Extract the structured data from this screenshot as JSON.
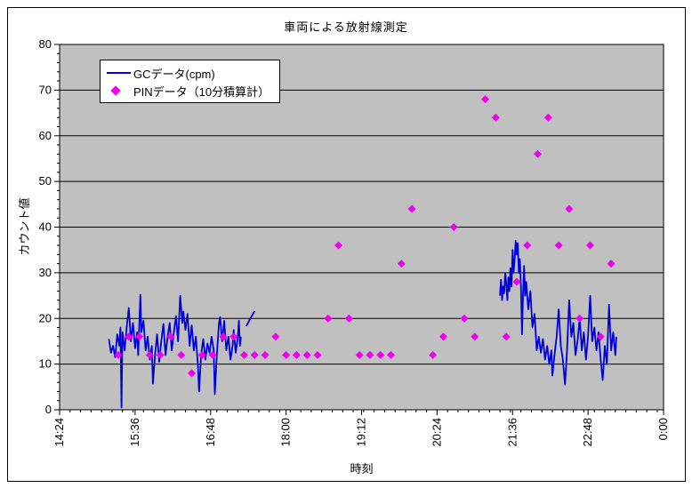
{
  "chart_data": {
    "type": "line+scatter",
    "title": "車両による放射線測定",
    "xlabel": "時刻",
    "ylabel": "カウント値",
    "x_ticks": [
      "14:24",
      "15:36",
      "16:48",
      "18:00",
      "19:12",
      "20:24",
      "21:36",
      "22:48",
      "0:00"
    ],
    "y_ticks": [
      0,
      10,
      20,
      30,
      40,
      50,
      60,
      70,
      80
    ],
    "ylim": [
      0,
      80
    ],
    "x_minor_unit_minutes": 10,
    "y_minor_unit": 2,
    "grid": "horizontal-major",
    "legend_position": "inside-top-left",
    "plot_bg_color": "#C0C0C0",
    "axis_color": "#000000",
    "series": [
      {
        "name": "GCデータ(cpm)",
        "type": "line",
        "color": "#0000D8",
        "segments": [
          [
            [
              "15:11",
              15.5
            ],
            [
              "15:13",
              12.5
            ],
            [
              "15:15",
              14
            ],
            [
              "15:17",
              11.5
            ],
            [
              "15:19",
              16.5
            ],
            [
              "15:21",
              14
            ],
            [
              "15:22",
              18
            ],
            [
              "15:23",
              0.5
            ],
            [
              "15:24",
              17
            ],
            [
              "15:26",
              13
            ],
            [
              "15:28",
              18
            ],
            [
              "15:30",
              22.3
            ],
            [
              "15:32",
              15
            ],
            [
              "15:34",
              19
            ],
            [
              "15:36",
              13.5
            ],
            [
              "15:38",
              17
            ],
            [
              "15:39",
              12
            ],
            [
              "15:41",
              25.2
            ],
            [
              "15:42",
              17
            ],
            [
              "15:44",
              19.5
            ],
            [
              "15:46",
              13
            ],
            [
              "15:48",
              16
            ],
            [
              "15:50",
              11
            ],
            [
              "15:52",
              14
            ],
            [
              "15:53",
              5.7
            ],
            [
              "15:55",
              12
            ],
            [
              "15:57",
              16.5
            ],
            [
              "15:59",
              10.5
            ],
            [
              "16:01",
              15
            ],
            [
              "16:03",
              18.8
            ],
            [
              "16:05",
              12
            ],
            [
              "16:07",
              16
            ],
            [
              "16:09",
              19
            ],
            [
              "16:11",
              13
            ],
            [
              "16:13",
              17
            ],
            [
              "16:15",
              20.5
            ],
            [
              "16:17",
              15
            ],
            [
              "16:19",
              25
            ],
            [
              "16:21",
              19
            ],
            [
              "16:22",
              21.5
            ],
            [
              "16:24",
              17.5
            ],
            [
              "16:26",
              21
            ],
            [
              "16:28",
              14
            ],
            [
              "16:30",
              18.5
            ],
            [
              "16:32",
              13
            ],
            [
              "16:34",
              16
            ],
            [
              "16:36",
              9.5
            ],
            [
              "16:37",
              4
            ],
            [
              "16:39",
              12
            ],
            [
              "16:41",
              15.5
            ],
            [
              "16:43",
              11
            ],
            [
              "16:45",
              14.5
            ],
            [
              "16:47",
              12.5
            ],
            [
              "16:49",
              16
            ],
            [
              "16:51",
              13
            ],
            [
              "16:52",
              3.4
            ],
            [
              "16:54",
              12
            ],
            [
              "16:56",
              19
            ],
            [
              "16:57",
              20.3
            ],
            [
              "16:59",
              15
            ],
            [
              "17:01",
              19.5
            ],
            [
              "17:03",
              13
            ],
            [
              "17:05",
              16
            ],
            [
              "17:07",
              11
            ],
            [
              "17:09",
              14
            ],
            [
              "17:10",
              17.5
            ],
            [
              "17:12",
              12.5
            ],
            [
              "17:14",
              16
            ],
            [
              "17:15",
              19.5
            ],
            [
              "17:16",
              14
            ],
            [
              "17:17",
              16
            ]
          ],
          [
            [
              "17:22",
              18.3
            ],
            [
              "17:26",
              20
            ],
            [
              "17:30",
              21.6
            ]
          ],
          [
            [
              "21:24",
              25
            ],
            [
              "21:25",
              28.5
            ],
            [
              "21:26",
              24
            ],
            [
              "21:27",
              27
            ],
            [
              "21:28",
              25.5
            ],
            [
              "21:29",
              30
            ],
            [
              "21:30",
              27.5
            ],
            [
              "21:31",
              24
            ],
            [
              "21:32",
              29
            ],
            [
              "21:33",
              26
            ],
            [
              "21:34",
              31
            ],
            [
              "21:35",
              27
            ],
            [
              "21:36",
              35
            ],
            [
              "21:37",
              30
            ],
            [
              "21:38",
              33
            ],
            [
              "21:39",
              37
            ],
            [
              "21:40",
              34
            ],
            [
              "21:41",
              36.5
            ],
            [
              "21:42",
              30
            ],
            [
              "21:43",
              33
            ],
            [
              "21:44",
              27
            ],
            [
              "21:45",
              16.5
            ],
            [
              "21:46",
              25
            ],
            [
              "21:47",
              31.5
            ],
            [
              "21:48",
              25
            ],
            [
              "21:49",
              28
            ],
            [
              "21:51",
              22
            ],
            [
              "21:53",
              26
            ],
            [
              "21:55",
              18
            ],
            [
              "21:57",
              21
            ],
            [
              "21:59",
              13
            ],
            [
              "22:01",
              16
            ],
            [
              "22:03",
              12.5
            ],
            [
              "22:05",
              15.5
            ],
            [
              "22:07",
              11
            ],
            [
              "22:09",
              14
            ],
            [
              "22:11",
              10
            ],
            [
              "22:13",
              13
            ],
            [
              "22:14",
              7.5
            ],
            [
              "22:16",
              12
            ],
            [
              "22:18",
              16
            ],
            [
              "22:20",
              22
            ],
            [
              "22:22",
              14
            ],
            [
              "22:24",
              11
            ],
            [
              "22:26",
              5.5
            ],
            [
              "22:28",
              13
            ],
            [
              "22:30",
              24
            ],
            [
              "22:32",
              16
            ],
            [
              "22:34",
              19
            ],
            [
              "22:36",
              12
            ],
            [
              "22:38",
              15
            ],
            [
              "22:40",
              20
            ],
            [
              "22:42",
              13
            ],
            [
              "22:44",
              17
            ],
            [
              "22:46",
              11
            ],
            [
              "22:48",
              16
            ],
            [
              "22:50",
              25
            ],
            [
              "22:52",
              15
            ],
            [
              "22:54",
              18
            ],
            [
              "22:56",
              13
            ],
            [
              "22:58",
              17
            ],
            [
              "23:00",
              11
            ],
            [
              "23:02",
              6.5
            ],
            [
              "23:04",
              14
            ],
            [
              "23:06",
              10
            ],
            [
              "23:08",
              23
            ],
            [
              "23:10",
              13
            ],
            [
              "23:12",
              17
            ],
            [
              "23:14",
              12
            ],
            [
              "23:15",
              16
            ]
          ]
        ]
      },
      {
        "name": "PINデータ（10分積算計）",
        "type": "scatter",
        "marker": "diamond",
        "color": "#EE00EE",
        "points": [
          [
            "15:20",
            12
          ],
          [
            "15:30",
            16
          ],
          [
            "15:40",
            16
          ],
          [
            "15:50",
            12
          ],
          [
            "16:00",
            12
          ],
          [
            "16:10",
            16
          ],
          [
            "16:20",
            12
          ],
          [
            "16:30",
            8
          ],
          [
            "16:40",
            12
          ],
          [
            "16:50",
            12
          ],
          [
            "17:00",
            16
          ],
          [
            "17:10",
            16
          ],
          [
            "17:20",
            12
          ],
          [
            "17:30",
            12
          ],
          [
            "17:40",
            12
          ],
          [
            "17:50",
            16
          ],
          [
            "18:00",
            12
          ],
          [
            "18:10",
            12
          ],
          [
            "18:20",
            12
          ],
          [
            "18:30",
            12
          ],
          [
            "18:40",
            20
          ],
          [
            "18:50",
            36
          ],
          [
            "19:00",
            20
          ],
          [
            "19:10",
            12
          ],
          [
            "19:20",
            12
          ],
          [
            "19:30",
            12
          ],
          [
            "19:40",
            12
          ],
          [
            "19:50",
            32
          ],
          [
            "20:00",
            44
          ],
          [
            "20:20",
            12
          ],
          [
            "20:30",
            16
          ],
          [
            "20:40",
            40
          ],
          [
            "20:50",
            20
          ],
          [
            "21:00",
            16
          ],
          [
            "21:10",
            68
          ],
          [
            "21:20",
            64
          ],
          [
            "21:30",
            16
          ],
          [
            "21:40",
            28
          ],
          [
            "21:50",
            36
          ],
          [
            "22:00",
            56
          ],
          [
            "22:10",
            64
          ],
          [
            "22:20",
            36
          ],
          [
            "22:30",
            44
          ],
          [
            "22:40",
            20
          ],
          [
            "22:50",
            36
          ],
          [
            "23:00",
            16
          ],
          [
            "23:10",
            32
          ]
        ]
      }
    ]
  }
}
